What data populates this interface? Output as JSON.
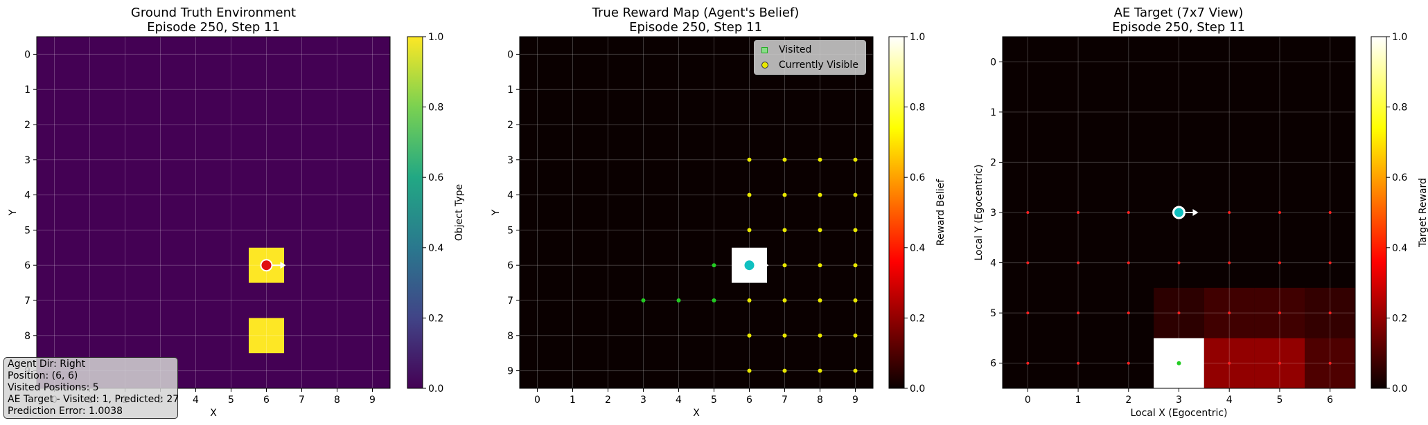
{
  "chart_data": [
    {
      "type": "heatmap",
      "title": "Ground Truth Environment",
      "subtitle": "Episode 250, Step 11",
      "xlabel": "X",
      "ylabel": "Y",
      "x_ticks": [
        "0",
        "1",
        "2",
        "3",
        "4",
        "5",
        "6",
        "7",
        "8",
        "9"
      ],
      "y_ticks": [
        "0",
        "1",
        "2",
        "3",
        "4",
        "5",
        "6",
        "7",
        "8",
        "9"
      ],
      "colormap": "viridis",
      "colorbar": {
        "label": "Object Type",
        "range": [
          0,
          1
        ],
        "ticks": [
          "0.0",
          "0.2",
          "0.4",
          "0.6",
          "0.8",
          "1.0"
        ]
      },
      "grid": true,
      "cells": [
        {
          "x": 6,
          "y": 6,
          "value": 1.0
        },
        {
          "x": 6,
          "y": 8,
          "value": 1.0
        }
      ],
      "background_value": 0.0,
      "agent": {
        "x": 6,
        "y": 6,
        "direction": "right",
        "color": "#e01010"
      }
    },
    {
      "type": "heatmap",
      "title": "True Reward Map (Agent's Belief)",
      "subtitle": "Episode 250, Step 11",
      "xlabel": "X",
      "ylabel": "Y",
      "x_ticks": [
        "0",
        "1",
        "2",
        "3",
        "4",
        "5",
        "6",
        "7",
        "8",
        "9"
      ],
      "y_ticks": [
        "0",
        "1",
        "2",
        "3",
        "4",
        "5",
        "6",
        "7",
        "8",
        "9"
      ],
      "colormap": "hot",
      "colorbar": {
        "label": "Reward Belief",
        "range": [
          0,
          1
        ],
        "ticks": [
          "0.0",
          "0.2",
          "0.4",
          "0.6",
          "0.8",
          "1.0"
        ]
      },
      "grid": true,
      "cells": [
        {
          "x": 6,
          "y": 6,
          "value": 1.0
        }
      ],
      "background_value": 0.0,
      "agent": {
        "x": 6,
        "y": 6,
        "direction": "right",
        "color": "#10c0c0"
      },
      "legend": {
        "placement": "top-right",
        "entries": [
          "Visited",
          "Currently Visible"
        ]
      },
      "visited": [
        [
          3,
          7
        ],
        [
          4,
          7
        ],
        [
          5,
          7
        ],
        [
          5,
          6
        ]
      ],
      "visible": {
        "x_range": [
          6,
          9
        ],
        "y_range": [
          3,
          9
        ]
      }
    },
    {
      "type": "heatmap",
      "title": "AE Target (7x7 View)",
      "subtitle": "Episode 250, Step 11",
      "xlabel": "Local X (Egocentric)",
      "ylabel": "Local Y (Egocentric)",
      "x_ticks": [
        "0",
        "1",
        "2",
        "3",
        "4",
        "5",
        "6"
      ],
      "y_ticks": [
        "0",
        "1",
        "2",
        "3",
        "4",
        "5",
        "6"
      ],
      "colormap": "hot",
      "colorbar": {
        "label": "Target Reward",
        "range": [
          0,
          1
        ],
        "ticks": [
          "0.0",
          "0.2",
          "0.4",
          "0.6",
          "0.8",
          "1.0"
        ]
      },
      "grid": true,
      "cells": [
        {
          "x": 3,
          "y": 6,
          "value": 1.0
        },
        {
          "x": 4,
          "y": 6,
          "value": 0.2
        },
        {
          "x": 5,
          "y": 6,
          "value": 0.2
        },
        {
          "x": 6,
          "y": 6,
          "value": 0.1
        },
        {
          "x": 3,
          "y": 5,
          "value": 0.05
        },
        {
          "x": 4,
          "y": 5,
          "value": 0.08
        },
        {
          "x": 5,
          "y": 5,
          "value": 0.08
        },
        {
          "x": 6,
          "y": 5,
          "value": 0.06
        }
      ],
      "background_value": 0.0,
      "agent": {
        "x": 3,
        "y": 3,
        "direction": "right",
        "color": "#10c0c0"
      },
      "visited": [
        [
          3,
          6
        ]
      ],
      "visible": {
        "x_range": [
          0,
          6
        ],
        "y_range": [
          3,
          6
        ]
      }
    }
  ],
  "info": {
    "agent_dir": "Agent Dir: Right",
    "position": "Position: (6, 6)",
    "visited_positions": "Visited Positions: 5",
    "ae_target": "AE Target - Visited: 1, Predicted: 27",
    "prediction_error": "Prediction Error: 1.0038"
  },
  "colors": {
    "viridis_low": "#440154",
    "viridis_high": "#fde725",
    "hot_low": "#0a0000",
    "visited_marker": "#22cc22",
    "visible_marker": "#e8e800",
    "ae_marker": "#ff2222"
  }
}
